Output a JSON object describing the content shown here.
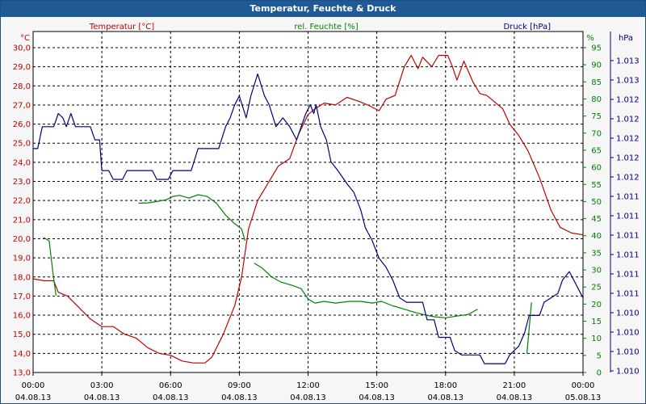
{
  "window": {
    "title": "Temperatur, Feuchte & Druck"
  },
  "chart_data": {
    "type": "line",
    "title": "Temperatur, Feuchte & Druck",
    "grid": true,
    "x": {
      "range_hours": [
        0,
        24
      ],
      "ticks": [
        {
          "h": 0,
          "time": "00:00",
          "date": "04.08.13"
        },
        {
          "h": 3,
          "time": "03:00",
          "date": "04.08.13"
        },
        {
          "h": 6,
          "time": "06:00",
          "date": "04.08.13"
        },
        {
          "h": 9,
          "time": "09:00",
          "date": "04.08.13"
        },
        {
          "h": 12,
          "time": "12:00",
          "date": "04.08.13"
        },
        {
          "h": 15,
          "time": "15:00",
          "date": "04.08.13"
        },
        {
          "h": 18,
          "time": "18:00",
          "date": "04.08.13"
        },
        {
          "h": 21,
          "time": "21:00",
          "date": "04.08.13"
        },
        {
          "h": 24,
          "time": "00:00",
          "date": "05.08.13"
        }
      ]
    },
    "axes": {
      "temperature": {
        "label": "Temperatur [°C]",
        "unit": "°C",
        "min": 13.0,
        "max": 30.0,
        "color": "#c00000",
        "ticks": [
          "13,0",
          "14,0",
          "15,0",
          "16,0",
          "17,0",
          "18,0",
          "19,0",
          "20,0",
          "21,0",
          "22,0",
          "23,0",
          "24,0",
          "25,0",
          "26,0",
          "27,0",
          "28,0",
          "29,0",
          "30,0"
        ]
      },
      "humidity": {
        "label": "rel. Feuchte [%]",
        "unit": "%",
        "min": 0,
        "max": 95,
        "color": "#008000",
        "ticks": [
          "0",
          "5",
          "10",
          "15",
          "20",
          "25",
          "30",
          "35",
          "40",
          "45",
          "50",
          "55",
          "60",
          "65",
          "70",
          "75",
          "80",
          "85",
          "90",
          "95"
        ]
      },
      "pressure": {
        "label": "Druck [hPa]",
        "unit": "hPa",
        "min": 1009.7,
        "max": 1013.4,
        "color": "#000080",
        "ticks": [
          "1.010",
          "1.010",
          "1.010",
          "1.010",
          "1.011",
          "1.011",
          "1.011",
          "1.011",
          "1.011",
          "1.011",
          "1.012",
          "1.012",
          "1.012",
          "1.012",
          "1.012",
          "1.013",
          "1.013"
        ]
      }
    },
    "series": [
      {
        "name": "Temperatur [°C]",
        "axis": "temperature",
        "color": "#c00000",
        "points": [
          [
            0,
            17.9
          ],
          [
            0.5,
            17.8
          ],
          [
            0.9,
            17.8
          ],
          [
            1.1,
            17.2
          ],
          [
            1.5,
            17.0
          ],
          [
            2,
            16.4
          ],
          [
            2.5,
            15.8
          ],
          [
            3,
            15.4
          ],
          [
            3.5,
            15.4
          ],
          [
            4,
            15.0
          ],
          [
            4.5,
            14.8
          ],
          [
            5,
            14.3
          ],
          [
            5.5,
            14.0
          ],
          [
            6,
            13.9
          ],
          [
            6.5,
            13.6
          ],
          [
            7,
            13.5
          ],
          [
            7.5,
            13.5
          ],
          [
            7.8,
            13.8
          ],
          [
            8.3,
            15.0
          ],
          [
            8.8,
            16.5
          ],
          [
            9.1,
            18.0
          ],
          [
            9.4,
            20.5
          ],
          [
            9.8,
            22.0
          ],
          [
            10.2,
            22.8
          ],
          [
            10.7,
            23.8
          ],
          [
            11.2,
            24.2
          ],
          [
            11.6,
            25.5
          ],
          [
            12,
            26.5
          ],
          [
            12.3,
            26.8
          ],
          [
            12.7,
            27.1
          ],
          [
            13.2,
            27.0
          ],
          [
            13.7,
            27.4
          ],
          [
            14.2,
            27.2
          ],
          [
            14.6,
            27.0
          ],
          [
            15.1,
            26.7
          ],
          [
            15.4,
            27.3
          ],
          [
            15.8,
            27.5
          ],
          [
            16.2,
            29.0
          ],
          [
            16.5,
            29.6
          ],
          [
            16.8,
            28.9
          ],
          [
            17.0,
            29.5
          ],
          [
            17.4,
            29.0
          ],
          [
            17.7,
            29.6
          ],
          [
            18.1,
            29.6
          ],
          [
            18.3,
            29.0
          ],
          [
            18.5,
            28.3
          ],
          [
            18.8,
            29.3
          ],
          [
            19.2,
            28.2
          ],
          [
            19.5,
            27.6
          ],
          [
            19.8,
            27.5
          ],
          [
            20.1,
            27.2
          ],
          [
            20.5,
            26.8
          ],
          [
            20.8,
            26.0
          ],
          [
            21.2,
            25.4
          ],
          [
            21.6,
            24.6
          ],
          [
            22.1,
            23.2
          ],
          [
            22.6,
            21.5
          ],
          [
            23.0,
            20.6
          ],
          [
            23.5,
            20.3
          ],
          [
            24.0,
            20.2
          ]
        ]
      },
      {
        "name": "rel. Feuchte [%]",
        "axis": "humidity",
        "color": "#008000",
        "segments": [
          [
            [
              0.45,
              39.5
            ],
            [
              0.7,
              38.5
            ],
            [
              0.85,
              30
            ],
            [
              1.0,
              22.5
            ]
          ],
          [
            [
              4.6,
              49.5
            ],
            [
              5.0,
              49.6
            ],
            [
              5.4,
              50.0
            ],
            [
              5.8,
              50.5
            ],
            [
              6.1,
              51.5
            ],
            [
              6.4,
              51.8
            ],
            [
              6.8,
              51.0
            ],
            [
              7.2,
              52.0
            ],
            [
              7.6,
              51.5
            ],
            [
              8.0,
              49.5
            ],
            [
              8.4,
              46.0
            ],
            [
              8.8,
              43.5
            ],
            [
              9.1,
              42.0
            ],
            [
              9.25,
              38.5
            ]
          ],
          [
            [
              9.65,
              32.0
            ],
            [
              10.0,
              30.5
            ],
            [
              10.4,
              28.0
            ],
            [
              10.8,
              26.5
            ],
            [
              11.3,
              25.5
            ],
            [
              11.7,
              24.5
            ],
            [
              12.0,
              21.5
            ],
            [
              12.3,
              20.3
            ],
            [
              12.7,
              20.8
            ],
            [
              13.2,
              20.3
            ],
            [
              13.8,
              20.8
            ],
            [
              14.3,
              20.8
            ],
            [
              14.8,
              20.3
            ],
            [
              15.2,
              20.8
            ],
            [
              15.7,
              19.5
            ],
            [
              16.2,
              18.5
            ],
            [
              16.7,
              17.5
            ],
            [
              17.0,
              17.0
            ],
            [
              17.5,
              16.3
            ],
            [
              18.0,
              16.0
            ],
            [
              18.5,
              16.5
            ],
            [
              19.0,
              17.0
            ],
            [
              19.4,
              18.5
            ]
          ],
          [
            [
              21.55,
              5.5
            ],
            [
              21.75,
              20.5
            ]
          ]
        ]
      },
      {
        "name": "Druck [hPa]",
        "axis": "pressure",
        "color": "#000080",
        "points": [
          [
            0,
            1012.25
          ],
          [
            0.2,
            1012.25
          ],
          [
            0.4,
            1012.5
          ],
          [
            0.9,
            1012.5
          ],
          [
            1.1,
            1012.65
          ],
          [
            1.3,
            1012.6
          ],
          [
            1.45,
            1012.5
          ],
          [
            1.65,
            1012.65
          ],
          [
            1.85,
            1012.5
          ],
          [
            2.5,
            1012.5
          ],
          [
            2.7,
            1012.35
          ],
          [
            2.9,
            1012.35
          ],
          [
            3.0,
            1012.0
          ],
          [
            3.3,
            1012.0
          ],
          [
            3.5,
            1011.9
          ],
          [
            3.9,
            1011.9
          ],
          [
            4.1,
            1012.0
          ],
          [
            5.2,
            1012.0
          ],
          [
            5.4,
            1011.9
          ],
          [
            5.9,
            1011.9
          ],
          [
            6.1,
            1012.0
          ],
          [
            6.9,
            1012.0
          ],
          [
            7.2,
            1012.25
          ],
          [
            8.1,
            1012.25
          ],
          [
            8.4,
            1012.5
          ],
          [
            8.6,
            1012.6
          ],
          [
            8.8,
            1012.75
          ],
          [
            9.0,
            1012.85
          ],
          [
            9.3,
            1012.6
          ],
          [
            9.5,
            1012.85
          ],
          [
            9.8,
            1013.1
          ],
          [
            10.1,
            1012.85
          ],
          [
            10.3,
            1012.75
          ],
          [
            10.6,
            1012.5
          ],
          [
            10.9,
            1012.6
          ],
          [
            11.2,
            1012.5
          ],
          [
            11.5,
            1012.35
          ],
          [
            11.9,
            1012.65
          ],
          [
            12.1,
            1012.75
          ],
          [
            12.25,
            1012.65
          ],
          [
            12.35,
            1012.75
          ],
          [
            12.55,
            1012.5
          ],
          [
            12.8,
            1012.35
          ],
          [
            13.0,
            1012.1
          ],
          [
            13.3,
            1012.0
          ],
          [
            13.7,
            1011.85
          ],
          [
            14.0,
            1011.75
          ],
          [
            14.3,
            1011.55
          ],
          [
            14.5,
            1011.35
          ],
          [
            14.8,
            1011.2
          ],
          [
            15.1,
            1011.0
          ],
          [
            15.4,
            1010.9
          ],
          [
            15.7,
            1010.75
          ],
          [
            16.0,
            1010.55
          ],
          [
            16.3,
            1010.5
          ],
          [
            17.0,
            1010.5
          ],
          [
            17.2,
            1010.3
          ],
          [
            17.5,
            1010.3
          ],
          [
            17.7,
            1010.1
          ],
          [
            18.2,
            1010.1
          ],
          [
            18.4,
            1009.95
          ],
          [
            18.7,
            1009.9
          ],
          [
            19.5,
            1009.9
          ],
          [
            19.7,
            1009.8
          ],
          [
            20.6,
            1009.8
          ],
          [
            20.8,
            1009.9
          ],
          [
            21.2,
            1010.0
          ],
          [
            21.45,
            1010.15
          ],
          [
            21.65,
            1010.35
          ],
          [
            22.1,
            1010.35
          ],
          [
            22.3,
            1010.5
          ],
          [
            22.9,
            1010.6
          ],
          [
            23.1,
            1010.75
          ],
          [
            23.4,
            1010.85
          ],
          [
            23.6,
            1010.75
          ],
          [
            23.8,
            1010.65
          ],
          [
            24.0,
            1010.55
          ]
        ]
      }
    ]
  }
}
